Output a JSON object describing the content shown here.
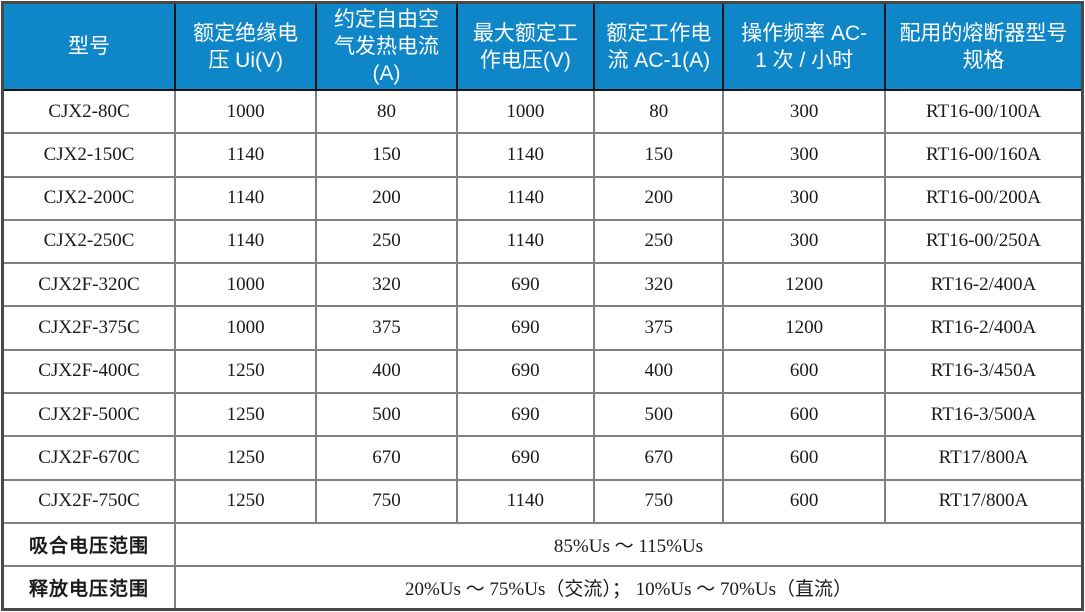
{
  "colors": {
    "header_bg": "#0e86c7",
    "header_text": "#ffffff",
    "body_text": "#1a1a1a",
    "row_bg": "#ffffff",
    "border_outer": "#47484a",
    "border_inner": "#7f8082",
    "border_header": "#141415"
  },
  "table": {
    "columns": [
      "型号",
      "额定绝缘电压 Ui(V)",
      "约定自由空气发热电流(A)",
      "最大额定工作电压(V)",
      "额定工作电流 AC-1(A)",
      "操作频率 AC-1 次 / 小时",
      "配用的熔断器型号规格"
    ],
    "rows": [
      [
        "CJX2-80C",
        "1000",
        "80",
        "1000",
        "80",
        "300",
        "RT16-00/100A"
      ],
      [
        "CJX2-150C",
        "1140",
        "150",
        "1140",
        "150",
        "300",
        "RT16-00/160A"
      ],
      [
        "CJX2-200C",
        "1140",
        "200",
        "1140",
        "200",
        "300",
        "RT16-00/200A"
      ],
      [
        "CJX2-250C",
        "1140",
        "250",
        "1140",
        "250",
        "300",
        "RT16-00/250A"
      ],
      [
        "CJX2F-320C",
        "1000",
        "320",
        "690",
        "320",
        "1200",
        "RT16-2/400A"
      ],
      [
        "CJX2F-375C",
        "1000",
        "375",
        "690",
        "375",
        "1200",
        "RT16-2/400A"
      ],
      [
        "CJX2F-400C",
        "1250",
        "400",
        "690",
        "400",
        "600",
        "RT16-3/450A"
      ],
      [
        "CJX2F-500C",
        "1250",
        "500",
        "690",
        "500",
        "600",
        "RT16-3/500A"
      ],
      [
        "CJX2F-670C",
        "1250",
        "670",
        "690",
        "670",
        "600",
        "RT17/800A"
      ],
      [
        "CJX2F-750C",
        "1250",
        "750",
        "1140",
        "750",
        "600",
        "RT17/800A"
      ]
    ],
    "footer": [
      {
        "label": "吸合电压范围",
        "value": "85%Us ～ 115%Us"
      },
      {
        "label": "释放电压范围",
        "value": "20%Us ～ 75%Us（交流）； 10%Us ～ 70%Us（直流）"
      }
    ]
  }
}
